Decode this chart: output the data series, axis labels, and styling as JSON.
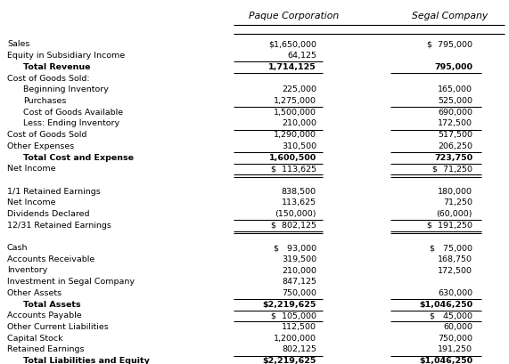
{
  "title_top": "Paque Corporation",
  "title_top2": "Segal Company",
  "rows": [
    {
      "label": "Sales",
      "paque": "$1,650,000",
      "segal": "$  795,000",
      "indent": 0,
      "bold": false,
      "ul_p": false,
      "ul_s": false,
      "dul_p": false,
      "dul_s": false
    },
    {
      "label": "Equity in Subsidiary Income",
      "paque": "64,125",
      "segal": "",
      "indent": 0,
      "bold": false,
      "ul_p": true,
      "ul_s": false,
      "dul_p": false,
      "dul_s": false
    },
    {
      "label": "Total Revenue",
      "paque": "1,714,125",
      "segal": "795,000",
      "indent": 1,
      "bold": true,
      "ul_p": true,
      "ul_s": true,
      "dul_p": false,
      "dul_s": false
    },
    {
      "label": "Cost of Goods Sold:",
      "paque": "",
      "segal": "",
      "indent": 0,
      "bold": false,
      "ul_p": false,
      "ul_s": false,
      "dul_p": false,
      "dul_s": false
    },
    {
      "label": "Beginning Inventory",
      "paque": "225,000",
      "segal": "165,000",
      "indent": 1,
      "bold": false,
      "ul_p": false,
      "ul_s": false,
      "dul_p": false,
      "dul_s": false
    },
    {
      "label": "Purchases",
      "paque": "1,275,000",
      "segal": "525,000",
      "indent": 1,
      "bold": false,
      "ul_p": true,
      "ul_s": true,
      "dul_p": false,
      "dul_s": false
    },
    {
      "label": "Cost of Goods Available",
      "paque": "1,500,000",
      "segal": "690,000",
      "indent": 1,
      "bold": false,
      "ul_p": false,
      "ul_s": false,
      "dul_p": false,
      "dul_s": false
    },
    {
      "label": "Less: Ending Inventory",
      "paque": "210,000",
      "segal": "172,500",
      "indent": 1,
      "bold": false,
      "ul_p": true,
      "ul_s": true,
      "dul_p": false,
      "dul_s": false
    },
    {
      "label": "Cost of Goods Sold",
      "paque": "1,290,000",
      "segal": "517,500",
      "indent": 0,
      "bold": false,
      "ul_p": false,
      "ul_s": false,
      "dul_p": false,
      "dul_s": false
    },
    {
      "label": "Other Expenses",
      "paque": "310,500",
      "segal": "206,250",
      "indent": 0,
      "bold": false,
      "ul_p": true,
      "ul_s": true,
      "dul_p": false,
      "dul_s": false
    },
    {
      "label": "Total Cost and Expense",
      "paque": "1,600,500",
      "segal": "723,750",
      "indent": 1,
      "bold": true,
      "ul_p": true,
      "ul_s": true,
      "dul_p": false,
      "dul_s": false
    },
    {
      "label": "Net Income",
      "paque": "$  113,625",
      "segal": "$  71,250",
      "indent": 0,
      "bold": false,
      "ul_p": false,
      "ul_s": false,
      "dul_p": true,
      "dul_s": true
    },
    {
      "label": "",
      "paque": "",
      "segal": "",
      "indent": 0,
      "bold": false,
      "ul_p": false,
      "ul_s": false,
      "dul_p": false,
      "dul_s": false
    },
    {
      "label": "1/1 Retained Earnings",
      "paque": "838,500",
      "segal": "180,000",
      "indent": 0,
      "bold": false,
      "ul_p": false,
      "ul_s": false,
      "dul_p": false,
      "dul_s": false
    },
    {
      "label": "Net Income",
      "paque": "113,625",
      "segal": "71,250",
      "indent": 0,
      "bold": false,
      "ul_p": false,
      "ul_s": false,
      "dul_p": false,
      "dul_s": false
    },
    {
      "label": "Dividends Declared",
      "paque": "(150,000)",
      "segal": "(60,000)",
      "indent": 0,
      "bold": false,
      "ul_p": true,
      "ul_s": true,
      "dul_p": false,
      "dul_s": false
    },
    {
      "label": "12/31 Retained Earnings",
      "paque": "$  802,125",
      "segal": "$  191,250",
      "indent": 0,
      "bold": false,
      "ul_p": false,
      "ul_s": false,
      "dul_p": true,
      "dul_s": true
    },
    {
      "label": "",
      "paque": "",
      "segal": "",
      "indent": 0,
      "bold": false,
      "ul_p": false,
      "ul_s": false,
      "dul_p": false,
      "dul_s": false
    },
    {
      "label": "Cash",
      "paque": "$   93,000",
      "segal": "$   75,000",
      "indent": 0,
      "bold": false,
      "ul_p": false,
      "ul_s": false,
      "dul_p": false,
      "dul_s": false
    },
    {
      "label": "Accounts Receivable",
      "paque": "319,500",
      "segal": "168,750",
      "indent": 0,
      "bold": false,
      "ul_p": false,
      "ul_s": false,
      "dul_p": false,
      "dul_s": false
    },
    {
      "label": "Inventory",
      "paque": "210,000",
      "segal": "172,500",
      "indent": 0,
      "bold": false,
      "ul_p": false,
      "ul_s": false,
      "dul_p": false,
      "dul_s": false
    },
    {
      "label": "Investment in Segal Company",
      "paque": "847,125",
      "segal": "",
      "indent": 0,
      "bold": false,
      "ul_p": false,
      "ul_s": false,
      "dul_p": false,
      "dul_s": false
    },
    {
      "label": "Other Assets",
      "paque": "750,000",
      "segal": "630,000",
      "indent": 0,
      "bold": false,
      "ul_p": true,
      "ul_s": true,
      "dul_p": false,
      "dul_s": false
    },
    {
      "label": "Total Assets",
      "paque": "$2,219,625",
      "segal": "$1,046,250",
      "indent": 1,
      "bold": true,
      "ul_p": true,
      "ul_s": true,
      "dul_p": false,
      "dul_s": false
    },
    {
      "label": "Accounts Payable",
      "paque": "$  105,000",
      "segal": "$   45,000",
      "indent": 0,
      "bold": false,
      "ul_p": true,
      "ul_s": true,
      "dul_p": false,
      "dul_s": false
    },
    {
      "label": "Other Current Liabilities",
      "paque": "112,500",
      "segal": "60,000",
      "indent": 0,
      "bold": false,
      "ul_p": false,
      "ul_s": false,
      "dul_p": false,
      "dul_s": false
    },
    {
      "label": "Capital Stock",
      "paque": "1,200,000",
      "segal": "750,000",
      "indent": 0,
      "bold": false,
      "ul_p": false,
      "ul_s": false,
      "dul_p": false,
      "dul_s": false
    },
    {
      "label": "Retained Earnings",
      "paque": "802,125",
      "segal": "191,250",
      "indent": 0,
      "bold": false,
      "ul_p": true,
      "ul_s": true,
      "dul_p": false,
      "dul_s": false
    },
    {
      "label": "Total Liabilities and Equity",
      "paque": "$2,219,625",
      "segal": "$1,046,250",
      "indent": 1,
      "bold": true,
      "ul_p": false,
      "ul_s": false,
      "dul_p": true,
      "dul_s": true
    }
  ],
  "font_size": 6.8,
  "header_font_size": 7.8,
  "bg_color": "#ffffff",
  "text_color": "#000000"
}
